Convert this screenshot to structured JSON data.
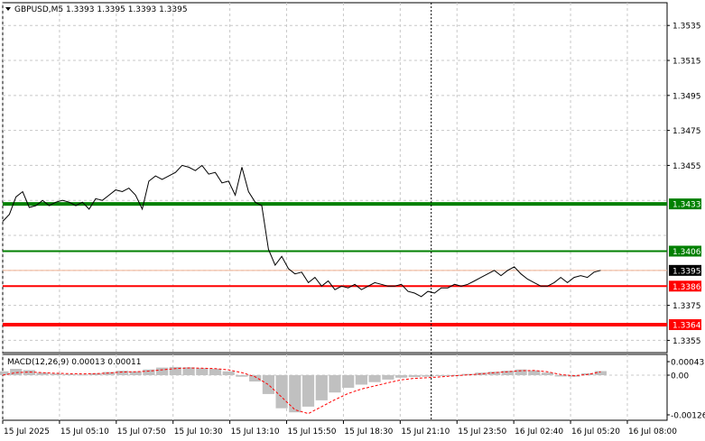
{
  "header": {
    "symbol_text": "GBPUSD,M5  1.3393 1.3395 1.3393 1.3395"
  },
  "colors": {
    "price_line": "#000000",
    "grid": "#c8c8c8",
    "level_green": "#008000",
    "level_red": "#ff0000",
    "current_tag_bg": "#000000",
    "macd_hist": "#c0c0c0",
    "macd_signal": "#ff0000",
    "crosshair": "#000000"
  },
  "chart_data": [
    {
      "type": "line",
      "panel": "main",
      "price_axis_ticks": [
        "1.3535",
        "1.3515",
        "1.3495",
        "1.3475",
        "1.3455",
        "1.3433",
        "1.3406",
        "1.3395",
        "1.3386",
        "1.3375",
        "1.3364",
        "1.3355"
      ],
      "y_range": [
        1.3348,
        1.3548
      ],
      "levels": [
        {
          "value": 1.3433,
          "label": "1.3433",
          "color": "#008000",
          "weight": "thick"
        },
        {
          "value": 1.3406,
          "label": "1.3406",
          "color": "#008000",
          "weight": "normal"
        },
        {
          "value": 1.3386,
          "label": "1.3386",
          "color": "#ff0000",
          "weight": "normal"
        },
        {
          "value": 1.3364,
          "label": "1.3364",
          "color": "#ff0000",
          "weight": "thick"
        }
      ],
      "current_price": {
        "value": 1.3395,
        "label": "1.3395"
      },
      "x_labels": [
        "15 Jul 2025",
        "15 Jul 05:10",
        "15 Jul 07:50",
        "15 Jul 10:30",
        "15 Jul 13:10",
        "15 Jul 15:50",
        "15 Jul 18:30",
        "15 Jul 21:10",
        "15 Jul 23:50",
        "16 Jul 02:40",
        "16 Jul 05:20",
        "16 Jul 08:00"
      ],
      "x_range": [
        0,
        100
      ],
      "crosshair_x": 64.5,
      "series": [
        {
          "x": [
            0,
            1,
            2,
            3,
            4,
            5,
            6,
            7,
            8,
            9,
            10,
            11,
            12,
            13,
            14,
            15,
            16,
            17,
            18,
            19,
            20,
            21,
            22,
            23,
            24,
            25,
            26,
            27,
            28,
            29,
            30,
            31,
            32,
            33,
            34,
            35,
            36,
            37,
            38,
            39,
            40,
            41,
            42,
            43,
            44,
            45,
            46,
            47,
            48,
            49,
            50,
            51,
            52,
            53,
            54,
            55,
            56,
            57,
            58,
            59,
            60,
            61,
            62,
            63,
            64,
            65,
            66,
            67,
            68,
            69,
            70,
            71,
            72,
            73,
            74,
            75,
            76,
            77,
            78,
            79,
            80,
            81,
            82,
            83,
            84,
            85,
            86,
            87,
            88,
            89,
            90
          ],
          "values": [
            1.3423,
            1.3427,
            1.3437,
            1.344,
            1.3431,
            1.3432,
            1.3435,
            1.3432,
            1.3434,
            1.3435,
            1.3434,
            1.3432,
            1.3434,
            1.343,
            1.3436,
            1.3435,
            1.3438,
            1.3441,
            1.344,
            1.3442,
            1.3438,
            1.343,
            1.3446,
            1.3449,
            1.3447,
            1.3449,
            1.3451,
            1.3455,
            1.3454,
            1.3452,
            1.3455,
            1.345,
            1.3451,
            1.3445,
            1.3446,
            1.3438,
            1.3454,
            1.344,
            1.3434,
            1.3432,
            1.3407,
            1.3398,
            1.3403,
            1.3396,
            1.3393,
            1.3394,
            1.3388,
            1.3391,
            1.3386,
            1.3389,
            1.3384,
            1.3386,
            1.3385,
            1.3387,
            1.3384,
            1.3386,
            1.3388,
            1.3387,
            1.3386,
            1.3386,
            1.3387,
            1.3383,
            1.3382,
            1.338,
            1.3383,
            1.3382,
            1.3385,
            1.3385,
            1.3387,
            1.3386,
            1.3387,
            1.3389,
            1.3391,
            1.3393,
            1.3395,
            1.3392,
            1.3395,
            1.3397,
            1.3393,
            1.339,
            1.3388,
            1.3386,
            1.3386,
            1.3388,
            1.3391,
            1.3388,
            1.3391,
            1.3392,
            1.3391,
            1.3394,
            1.3395
          ]
        }
      ]
    },
    {
      "type": "bar",
      "panel": "macd",
      "title": "MACD(12,26,9) 0.00013 0.00011",
      "axis_ticks": [
        "0.00043",
        "0.00",
        "-0.00126"
      ],
      "y_range": [
        -0.00126,
        0.00043
      ],
      "series": [
        {
          "x": [
            0,
            2,
            4,
            6,
            8,
            10,
            12,
            14,
            16,
            18,
            20,
            22,
            24,
            26,
            28,
            30,
            32,
            34,
            36,
            38,
            40,
            42,
            44,
            46,
            48,
            50,
            52,
            54,
            56,
            58,
            60,
            62,
            64,
            66,
            68,
            70,
            72,
            74,
            76,
            78,
            80,
            82,
            84,
            86,
            88,
            90
          ],
          "values": [
            0.00012,
            0.0002,
            0.00016,
            8e-05,
            5e-05,
            3e-05,
            2e-05,
            6e-05,
            0.0001,
            0.00014,
            0.00012,
            0.00018,
            0.00024,
            0.00026,
            0.00025,
            0.00022,
            0.0002,
            0.00012,
            -5e-05,
            -0.0002,
            -0.0006,
            -0.00105,
            -0.00118,
            -0.001,
            -0.0008,
            -0.00055,
            -0.0004,
            -0.0003,
            -0.00022,
            -0.00014,
            -8e-05,
            -6e-05,
            -5e-05,
            -2e-05,
            0.0,
            4e-05,
            8e-05,
            0.00011,
            0.00014,
            0.00018,
            0.00015,
            8e-05,
            -4e-05,
            -5e-05,
            6e-05,
            0.00013
          ]
        },
        {
          "x": [
            0,
            2,
            4,
            6,
            8,
            10,
            12,
            14,
            16,
            18,
            20,
            22,
            24,
            26,
            28,
            30,
            32,
            34,
            36,
            38,
            40,
            42,
            44,
            46,
            48,
            50,
            52,
            54,
            56,
            58,
            60,
            62,
            64,
            66,
            68,
            70,
            72,
            74,
            76,
            78,
            80,
            82,
            84,
            86,
            88,
            90
          ],
          "values": [
            0.0,
            8e-05,
            0.0001,
            8e-05,
            6e-05,
            5e-05,
            4e-05,
            5e-05,
            7e-05,
            0.0001,
            0.00011,
            0.00013,
            0.00017,
            0.00021,
            0.00023,
            0.00022,
            0.00021,
            0.00017,
            8e-05,
            -5e-05,
            -0.0003,
            -0.0007,
            -0.0011,
            -0.00122,
            -0.001,
            -0.00078,
            -0.00058,
            -0.00044,
            -0.00034,
            -0.00024,
            -0.00015,
            -0.0001,
            -8e-05,
            -5e-05,
            -2e-05,
            1e-05,
            4e-05,
            8e-05,
            0.00011,
            0.00014,
            0.00015,
            0.00011,
            2e-05,
            -2e-05,
            2e-05,
            0.00011
          ]
        }
      ]
    }
  ]
}
